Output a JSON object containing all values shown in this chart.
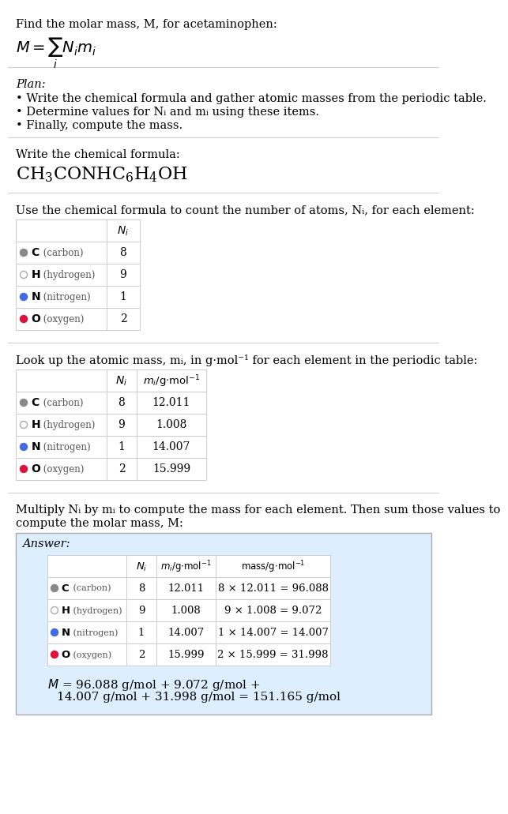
{
  "bg_color": "#ffffff",
  "text_color": "#000000",
  "title_line1": "Find the molar mass, M, for acetaminophen:",
  "plan_header": "Plan:",
  "plan_bullets": [
    "• Write the chemical formula and gather atomic masses from the periodic table.",
    "• Determine values for Nᵢ and mᵢ using these items.",
    "• Finally, compute the mass."
  ],
  "formula_header": "Write the chemical formula:",
  "table1_header": "Use the chemical formula to count the number of atoms, Nᵢ, for each element:",
  "table2_header": "Look up the atomic mass, mᵢ, in g·mol⁻¹ for each element in the periodic table:",
  "table3_intro1": "Multiply Nᵢ by mᵢ to compute the mass for each element. Then sum those values to",
  "table3_intro2": "compute the molar mass, M:",
  "elements": [
    "C",
    "H",
    "N",
    "O"
  ],
  "element_names": [
    "carbon",
    "hydrogen",
    "nitrogen",
    "oxygen"
  ],
  "dot_colors": [
    "#888888",
    "#ffffff",
    "#4169e1",
    "#dc143c"
  ],
  "dot_outline": [
    "#888888",
    "#aaaaaa",
    "#4169e1",
    "#dc143c"
  ],
  "Ni": [
    8,
    9,
    1,
    2
  ],
  "mi": [
    "12.011",
    "1.008",
    "14.007",
    "15.999"
  ],
  "mass_exprs": [
    "8 × 12.011 = 96.088",
    "9 × 1.008 = 9.072",
    "1 × 14.007 = 14.007",
    "2 × 15.999 = 31.998"
  ],
  "final_line1": "M = 96.088 g/mol + 9.072 g/mol +",
  "final_line2": "    14.007 g/mol + 31.998 g/mol = 151.165 g/mol",
  "answer_box_color": "#ddeeff",
  "divider_color": "#cccccc",
  "table_line_color": "#cccccc"
}
